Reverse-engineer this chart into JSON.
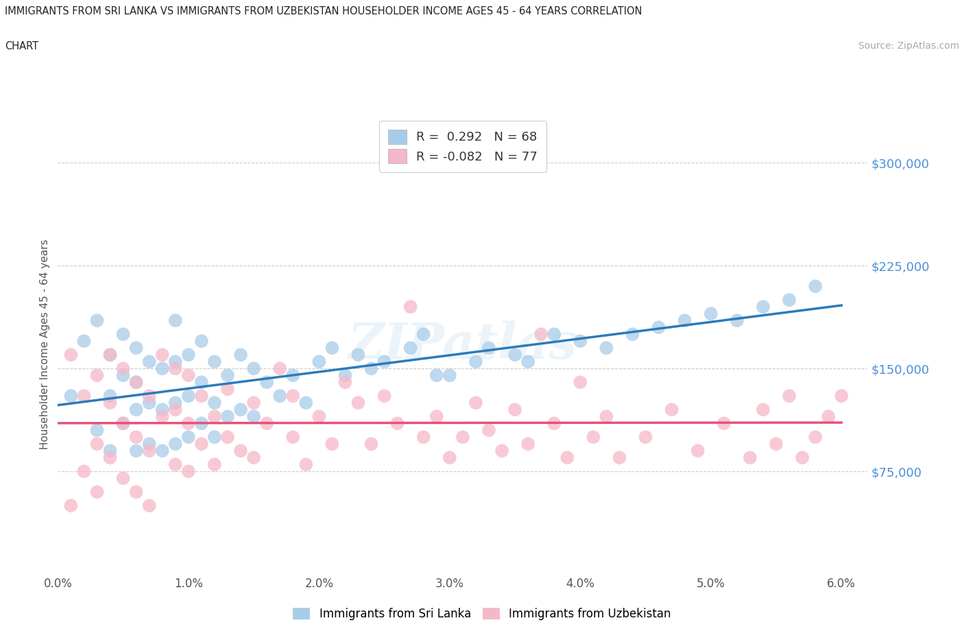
{
  "title_line1": "IMMIGRANTS FROM SRI LANKA VS IMMIGRANTS FROM UZBEKISTAN HOUSEHOLDER INCOME AGES 45 - 64 YEARS CORRELATION",
  "title_line2": "CHART",
  "source_text": "Source: ZipAtlas.com",
  "ylabel": "Householder Income Ages 45 - 64 years",
  "xlim": [
    0.0,
    0.062
  ],
  "ylim": [
    0,
    335000
  ],
  "yticks": [
    75000,
    150000,
    225000,
    300000
  ],
  "ytick_labels": [
    "$75,000",
    "$150,000",
    "$225,000",
    "$300,000"
  ],
  "xtick_labels": [
    "0.0%",
    "1.0%",
    "2.0%",
    "3.0%",
    "4.0%",
    "5.0%",
    "6.0%"
  ],
  "xticks": [
    0.0,
    0.01,
    0.02,
    0.03,
    0.04,
    0.05,
    0.06
  ],
  "sri_lanka_color": "#a8cce8",
  "uzbekistan_color": "#f5b8c8",
  "sri_lanka_line_color": "#2b7bba",
  "uzbekistan_line_color": "#e8507a",
  "sri_lanka_R": 0.292,
  "sri_lanka_N": 68,
  "uzbekistan_R": -0.082,
  "uzbekistan_N": 77,
  "watermark": "ZIPatlas",
  "grid_color": "#cccccc",
  "background_color": "#ffffff",
  "sri_lanka_x": [
    0.001,
    0.002,
    0.003,
    0.003,
    0.004,
    0.004,
    0.004,
    0.005,
    0.005,
    0.005,
    0.006,
    0.006,
    0.006,
    0.006,
    0.007,
    0.007,
    0.007,
    0.008,
    0.008,
    0.008,
    0.009,
    0.009,
    0.009,
    0.009,
    0.01,
    0.01,
    0.01,
    0.011,
    0.011,
    0.011,
    0.012,
    0.012,
    0.012,
    0.013,
    0.013,
    0.014,
    0.014,
    0.015,
    0.015,
    0.016,
    0.017,
    0.018,
    0.019,
    0.02,
    0.021,
    0.022,
    0.023,
    0.024,
    0.025,
    0.027,
    0.028,
    0.029,
    0.03,
    0.032,
    0.033,
    0.035,
    0.036,
    0.038,
    0.04,
    0.042,
    0.044,
    0.046,
    0.048,
    0.05,
    0.052,
    0.054,
    0.056,
    0.058
  ],
  "sri_lanka_y": [
    130000,
    170000,
    185000,
    105000,
    160000,
    130000,
    90000,
    175000,
    145000,
    110000,
    165000,
    140000,
    120000,
    90000,
    155000,
    125000,
    95000,
    150000,
    120000,
    90000,
    185000,
    155000,
    125000,
    95000,
    160000,
    130000,
    100000,
    170000,
    140000,
    110000,
    155000,
    125000,
    100000,
    145000,
    115000,
    160000,
    120000,
    150000,
    115000,
    140000,
    130000,
    145000,
    125000,
    155000,
    165000,
    145000,
    160000,
    150000,
    155000,
    165000,
    175000,
    145000,
    145000,
    155000,
    165000,
    160000,
    155000,
    175000,
    170000,
    165000,
    175000,
    180000,
    185000,
    190000,
    185000,
    195000,
    200000,
    210000
  ],
  "uzbekistan_x": [
    0.001,
    0.001,
    0.002,
    0.002,
    0.003,
    0.003,
    0.003,
    0.004,
    0.004,
    0.004,
    0.005,
    0.005,
    0.005,
    0.006,
    0.006,
    0.006,
    0.007,
    0.007,
    0.007,
    0.008,
    0.008,
    0.009,
    0.009,
    0.009,
    0.01,
    0.01,
    0.01,
    0.011,
    0.011,
    0.012,
    0.012,
    0.013,
    0.013,
    0.014,
    0.015,
    0.015,
    0.016,
    0.017,
    0.018,
    0.018,
    0.019,
    0.02,
    0.021,
    0.022,
    0.023,
    0.024,
    0.025,
    0.026,
    0.027,
    0.028,
    0.029,
    0.03,
    0.031,
    0.032,
    0.033,
    0.034,
    0.035,
    0.036,
    0.037,
    0.038,
    0.039,
    0.04,
    0.041,
    0.042,
    0.043,
    0.045,
    0.047,
    0.049,
    0.051,
    0.053,
    0.054,
    0.055,
    0.056,
    0.057,
    0.058,
    0.059,
    0.06
  ],
  "uzbekistan_y": [
    50000,
    160000,
    75000,
    130000,
    95000,
    145000,
    60000,
    85000,
    125000,
    160000,
    70000,
    110000,
    150000,
    60000,
    100000,
    140000,
    50000,
    90000,
    130000,
    160000,
    115000,
    80000,
    120000,
    150000,
    145000,
    110000,
    75000,
    130000,
    95000,
    115000,
    80000,
    100000,
    135000,
    90000,
    125000,
    85000,
    110000,
    150000,
    130000,
    100000,
    80000,
    115000,
    95000,
    140000,
    125000,
    95000,
    130000,
    110000,
    195000,
    100000,
    115000,
    85000,
    100000,
    125000,
    105000,
    90000,
    120000,
    95000,
    175000,
    110000,
    85000,
    140000,
    100000,
    115000,
    85000,
    100000,
    120000,
    90000,
    110000,
    85000,
    120000,
    95000,
    130000,
    85000,
    100000,
    115000,
    130000
  ]
}
